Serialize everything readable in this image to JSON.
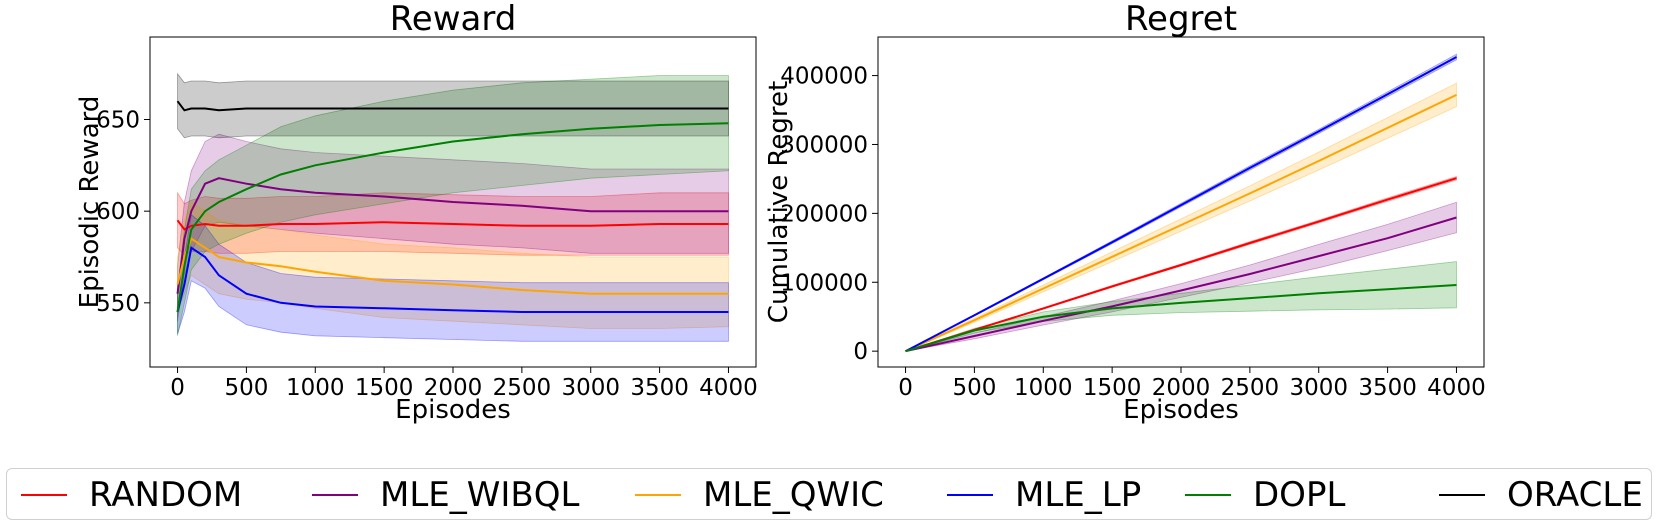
{
  "legend": [
    {
      "name": "RANDOM",
      "color": "#ff0000"
    },
    {
      "name": "MLE_WIBQL",
      "color": "#800080"
    },
    {
      "name": "MLE_QWIC",
      "color": "#ffa500"
    },
    {
      "name": "MLE_LP",
      "color": "#0000ff"
    },
    {
      "name": "DOPL",
      "color": "#008000"
    },
    {
      "name": "ORACLE",
      "color": "#000000"
    }
  ],
  "chart_data": [
    {
      "type": "line",
      "title": "Reward",
      "xlabel": "Episodes",
      "ylabel": "Episodic Reward",
      "xlim": [
        -200,
        4200
      ],
      "ylim": [
        515,
        695
      ],
      "xticks": [
        0,
        500,
        1000,
        1500,
        2000,
        2500,
        3000,
        3500,
        4000
      ],
      "yticks": [
        550,
        600,
        650
      ],
      "grid": false,
      "x": [
        0,
        50,
        100,
        200,
        300,
        500,
        750,
        1000,
        1500,
        2000,
        2500,
        3000,
        3500,
        4000
      ],
      "series": [
        {
          "name": "RANDOM",
          "color": "#ff0000",
          "values": [
            595,
            590,
            592,
            593,
            592,
            592,
            593,
            593,
            594,
            593,
            592,
            592,
            593,
            593
          ],
          "lower": [
            580,
            576,
            578,
            578,
            577,
            577,
            578,
            578,
            578,
            577,
            576,
            576,
            576,
            576
          ],
          "upper": [
            610,
            604,
            606,
            608,
            607,
            607,
            608,
            608,
            610,
            609,
            608,
            608,
            610,
            610
          ]
        },
        {
          "name": "MLE_WIBQL",
          "color": "#800080",
          "values": [
            555,
            585,
            600,
            615,
            618,
            615,
            612,
            610,
            608,
            605,
            603,
            600,
            600,
            600
          ],
          "lower": [
            540,
            565,
            578,
            592,
            594,
            592,
            590,
            588,
            585,
            582,
            580,
            577,
            577,
            577
          ],
          "upper": [
            570,
            605,
            622,
            638,
            642,
            638,
            634,
            632,
            630,
            628,
            626,
            623,
            623,
            623
          ]
        },
        {
          "name": "MLE_QWIC",
          "color": "#ffa500",
          "values": [
            560,
            575,
            585,
            580,
            575,
            572,
            570,
            567,
            562,
            560,
            557,
            555,
            555,
            555
          ],
          "lower": [
            545,
            555,
            565,
            560,
            555,
            552,
            550,
            547,
            542,
            540,
            538,
            536,
            536,
            537
          ],
          "upper": [
            575,
            595,
            605,
            600,
            595,
            592,
            590,
            587,
            582,
            580,
            577,
            575,
            575,
            575
          ]
        },
        {
          "name": "MLE_LP",
          "color": "#0000ff",
          "values": [
            545,
            560,
            580,
            575,
            565,
            555,
            550,
            548,
            547,
            546,
            545,
            545,
            545,
            545
          ],
          "lower": [
            533,
            545,
            562,
            558,
            548,
            538,
            534,
            532,
            531,
            530,
            529,
            529,
            529,
            529
          ],
          "upper": [
            557,
            575,
            598,
            592,
            582,
            572,
            566,
            564,
            563,
            562,
            561,
            561,
            561,
            561
          ]
        },
        {
          "name": "DOPL",
          "color": "#008000",
          "values": [
            545,
            570,
            590,
            600,
            605,
            612,
            620,
            625,
            632,
            638,
            642,
            645,
            647,
            648
          ],
          "lower": [
            532,
            550,
            568,
            578,
            582,
            588,
            594,
            598,
            604,
            610,
            614,
            618,
            620,
            622
          ],
          "upper": [
            558,
            590,
            612,
            622,
            628,
            636,
            646,
            652,
            660,
            666,
            670,
            672,
            674,
            674
          ]
        },
        {
          "name": "ORACLE",
          "color": "#000000",
          "values": [
            660,
            655,
            656,
            656,
            655,
            656,
            656,
            656,
            656,
            656,
            656,
            656,
            656,
            656
          ],
          "lower": [
            645,
            640,
            641,
            641,
            640,
            641,
            641,
            641,
            641,
            641,
            641,
            641,
            641,
            641
          ],
          "upper": [
            675,
            670,
            671,
            671,
            670,
            671,
            671,
            671,
            671,
            671,
            671,
            671,
            671,
            671
          ]
        }
      ]
    },
    {
      "type": "line",
      "title": "Regret",
      "xlabel": "Episodes",
      "ylabel": "Cumulative Regret",
      "xlim": [
        -200,
        4200
      ],
      "ylim": [
        -23000,
        456000
      ],
      "xticks": [
        0,
        500,
        1000,
        1500,
        2000,
        2500,
        3000,
        3500,
        4000
      ],
      "yticks": [
        0,
        100000,
        200000,
        300000,
        400000
      ],
      "grid": false,
      "x": [
        0,
        500,
        1000,
        1500,
        2000,
        2500,
        3000,
        3500,
        4000
      ],
      "series": [
        {
          "name": "RANDOM",
          "color": "#ff0000",
          "values": [
            0,
            31000,
            62000,
            94000,
            125000,
            157000,
            188000,
            220000,
            251000
          ],
          "lower": [
            0,
            30500,
            61000,
            92500,
            123500,
            155000,
            186000,
            217500,
            248500
          ],
          "upper": [
            0,
            31500,
            63000,
            95500,
            126500,
            159000,
            190000,
            222500,
            253500
          ]
        },
        {
          "name": "MLE_WIBQL",
          "color": "#800080",
          "values": [
            0,
            22000,
            44000,
            65000,
            88000,
            112000,
            138000,
            164000,
            194000
          ],
          "lower": [
            0,
            18000,
            38000,
            57000,
            78000,
            99000,
            121000,
            146000,
            172000
          ],
          "upper": [
            0,
            26000,
            50000,
            73000,
            98000,
            125000,
            155000,
            184000,
            216000
          ]
        },
        {
          "name": "MLE_QWIC",
          "color": "#ffa500",
          "values": [
            0,
            45000,
            91000,
            137000,
            183000,
            229000,
            276000,
            324000,
            372000
          ],
          "lower": [
            0,
            42000,
            86000,
            130000,
            174000,
            218000,
            263000,
            309000,
            355000
          ],
          "upper": [
            0,
            48000,
            96000,
            144000,
            192000,
            240000,
            289000,
            339000,
            389000
          ]
        },
        {
          "name": "MLE_LP",
          "color": "#0000ff",
          "values": [
            0,
            52000,
            105000,
            158000,
            212000,
            266000,
            319000,
            373000,
            427000
          ],
          "lower": [
            0,
            51000,
            103500,
            156000,
            209500,
            263000,
            316000,
            369500,
            423000
          ],
          "upper": [
            0,
            53000,
            106500,
            160000,
            214500,
            269000,
            322000,
            376500,
            431000
          ]
        },
        {
          "name": "DOPL",
          "color": "#008000",
          "values": [
            0,
            30000,
            50000,
            62000,
            70000,
            77000,
            84000,
            90000,
            96000
          ],
          "lower": [
            0,
            27000,
            43000,
            52000,
            56000,
            58000,
            60000,
            61000,
            63000
          ],
          "upper": [
            0,
            33000,
            57000,
            72000,
            84000,
            96000,
            108000,
            119000,
            130000
          ]
        }
      ]
    }
  ]
}
